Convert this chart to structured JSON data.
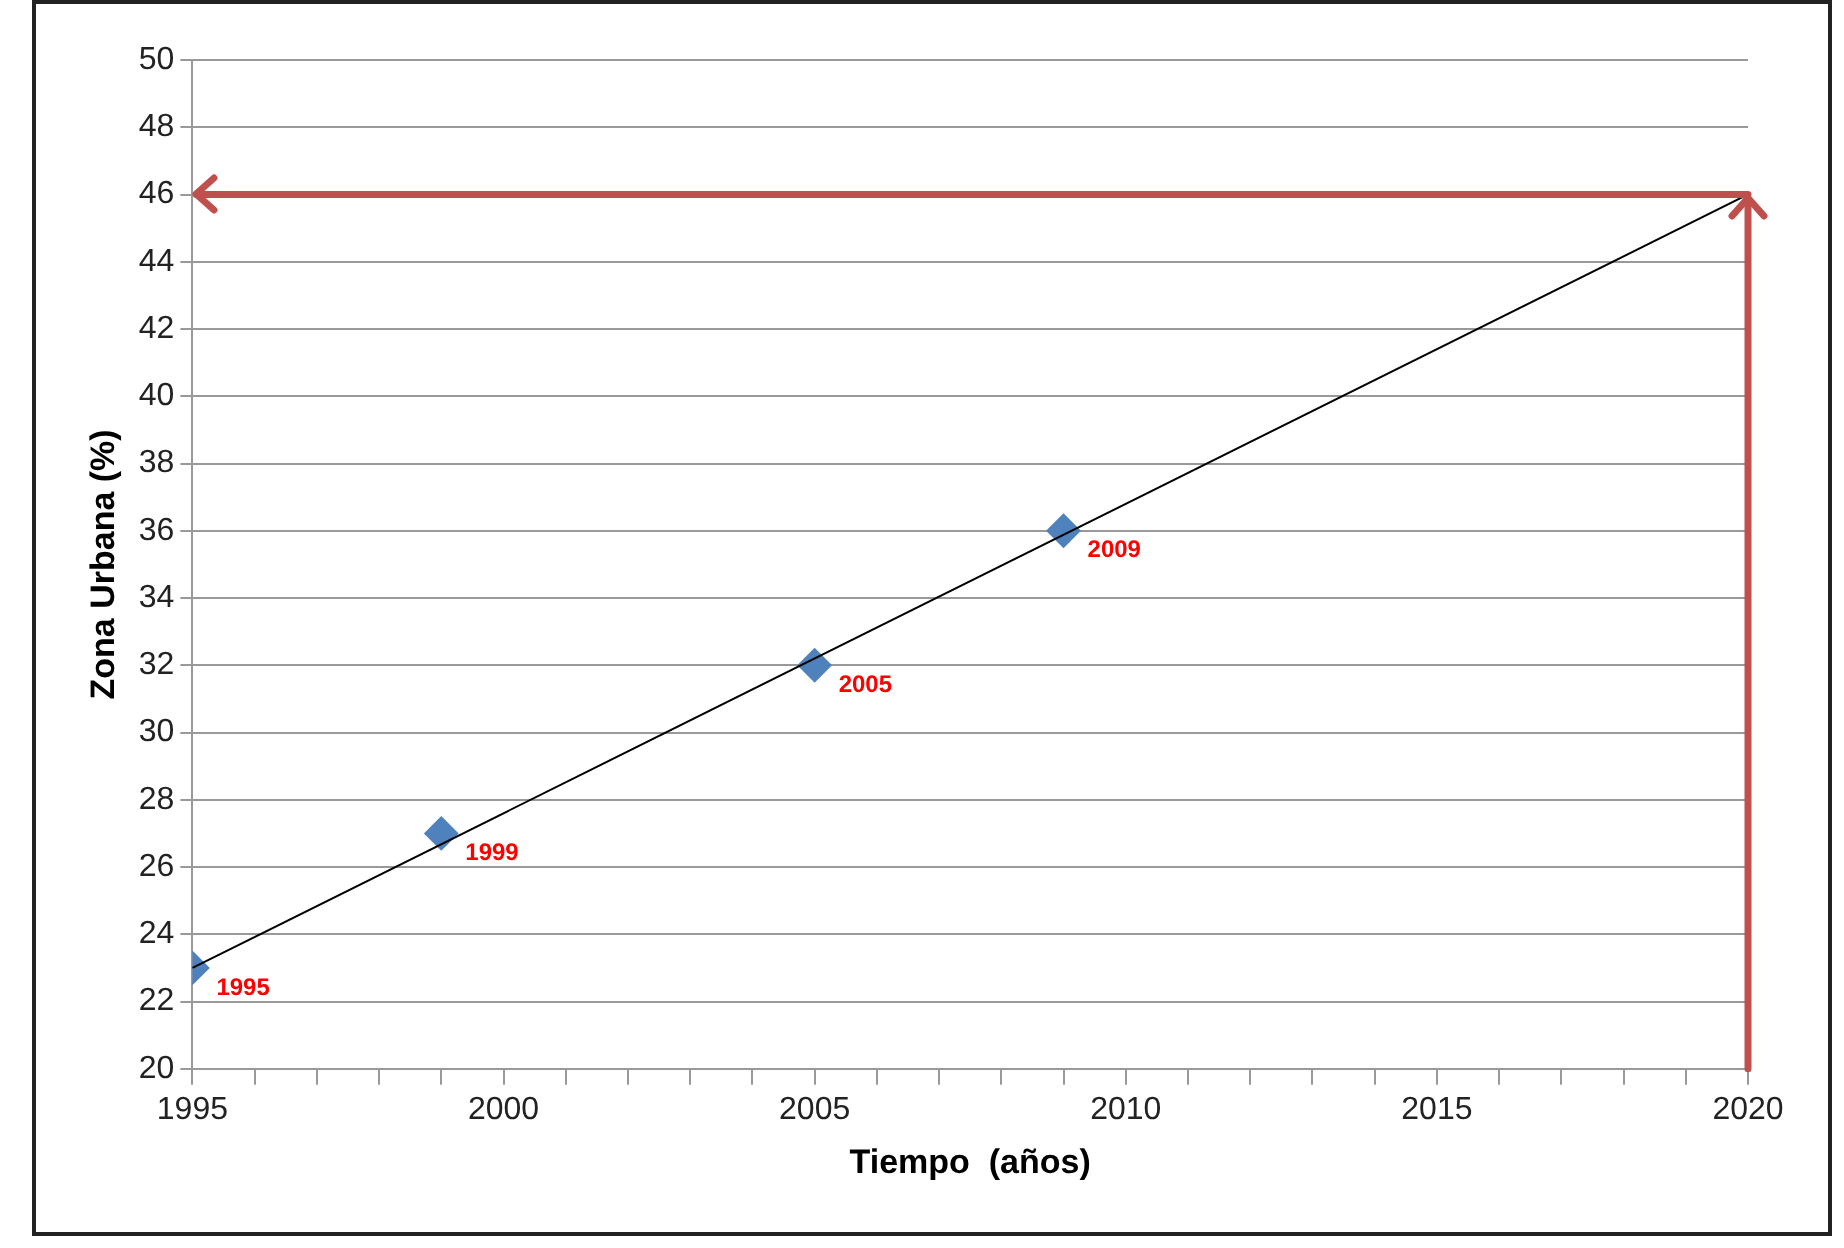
{
  "chart_data": {
    "type": "scatter",
    "xlabel": "Tiempo  (años)",
    "ylabel": "Zona Urbana (%)",
    "xlim": [
      1995,
      2020
    ],
    "xticks": [
      1995,
      {
        "value": 1996,
        "label": null
      },
      {
        "value": 1997,
        "label": null
      },
      {
        "value": 1998,
        "label": null
      },
      {
        "value": 1999,
        "label": null
      },
      2000,
      {
        "value": 2001,
        "label": null
      },
      {
        "value": 2002,
        "label": null
      },
      {
        "value": 2003,
        "label": null
      },
      {
        "value": 2004,
        "label": null
      },
      2005,
      {
        "value": 2006,
        "label": null
      },
      {
        "value": 2007,
        "label": null
      },
      {
        "value": 2008,
        "label": null
      },
      {
        "value": 2009,
        "label": null
      },
      2010,
      {
        "value": 2011,
        "label": null
      },
      {
        "value": 2012,
        "label": null
      },
      {
        "value": 2013,
        "label": null
      },
      {
        "value": 2014,
        "label": null
      },
      2015,
      {
        "value": 2016,
        "label": null
      },
      {
        "value": 2017,
        "label": null
      },
      {
        "value": 2018,
        "label": null
      },
      {
        "value": 2019,
        "label": null
      },
      2020
    ],
    "ylim": [
      20,
      50
    ],
    "yticks": [
      20,
      22,
      24,
      26,
      28,
      30,
      32,
      34,
      36,
      38,
      40,
      42,
      44,
      46,
      48,
      50
    ],
    "grid": "y",
    "legend": false,
    "series": [
      {
        "type": "line",
        "x": [
          1995,
          2020
        ],
        "values": [
          23,
          46
        ],
        "color": "#000000",
        "marker": "none"
      },
      {
        "x": [
          1995,
          1999,
          2005,
          2009
        ],
        "values": [
          23,
          27,
          32,
          36
        ],
        "color": "#4f81bd",
        "marker": "diamond"
      }
    ],
    "annotations": [
      {
        "text": "1995",
        "x": 1995,
        "y": 23
      },
      {
        "text": "1999",
        "x": 1999,
        "y": 27
      },
      {
        "text": "2005",
        "x": 2005,
        "y": 32
      },
      {
        "text": "2009",
        "x": 2009,
        "y": 36
      }
    ],
    "ref_lines": [
      {
        "axis": "y",
        "value": 46,
        "color": "#c0504d"
      },
      {
        "axis": "x",
        "value": 2020,
        "color": "#c0504d"
      }
    ]
  }
}
